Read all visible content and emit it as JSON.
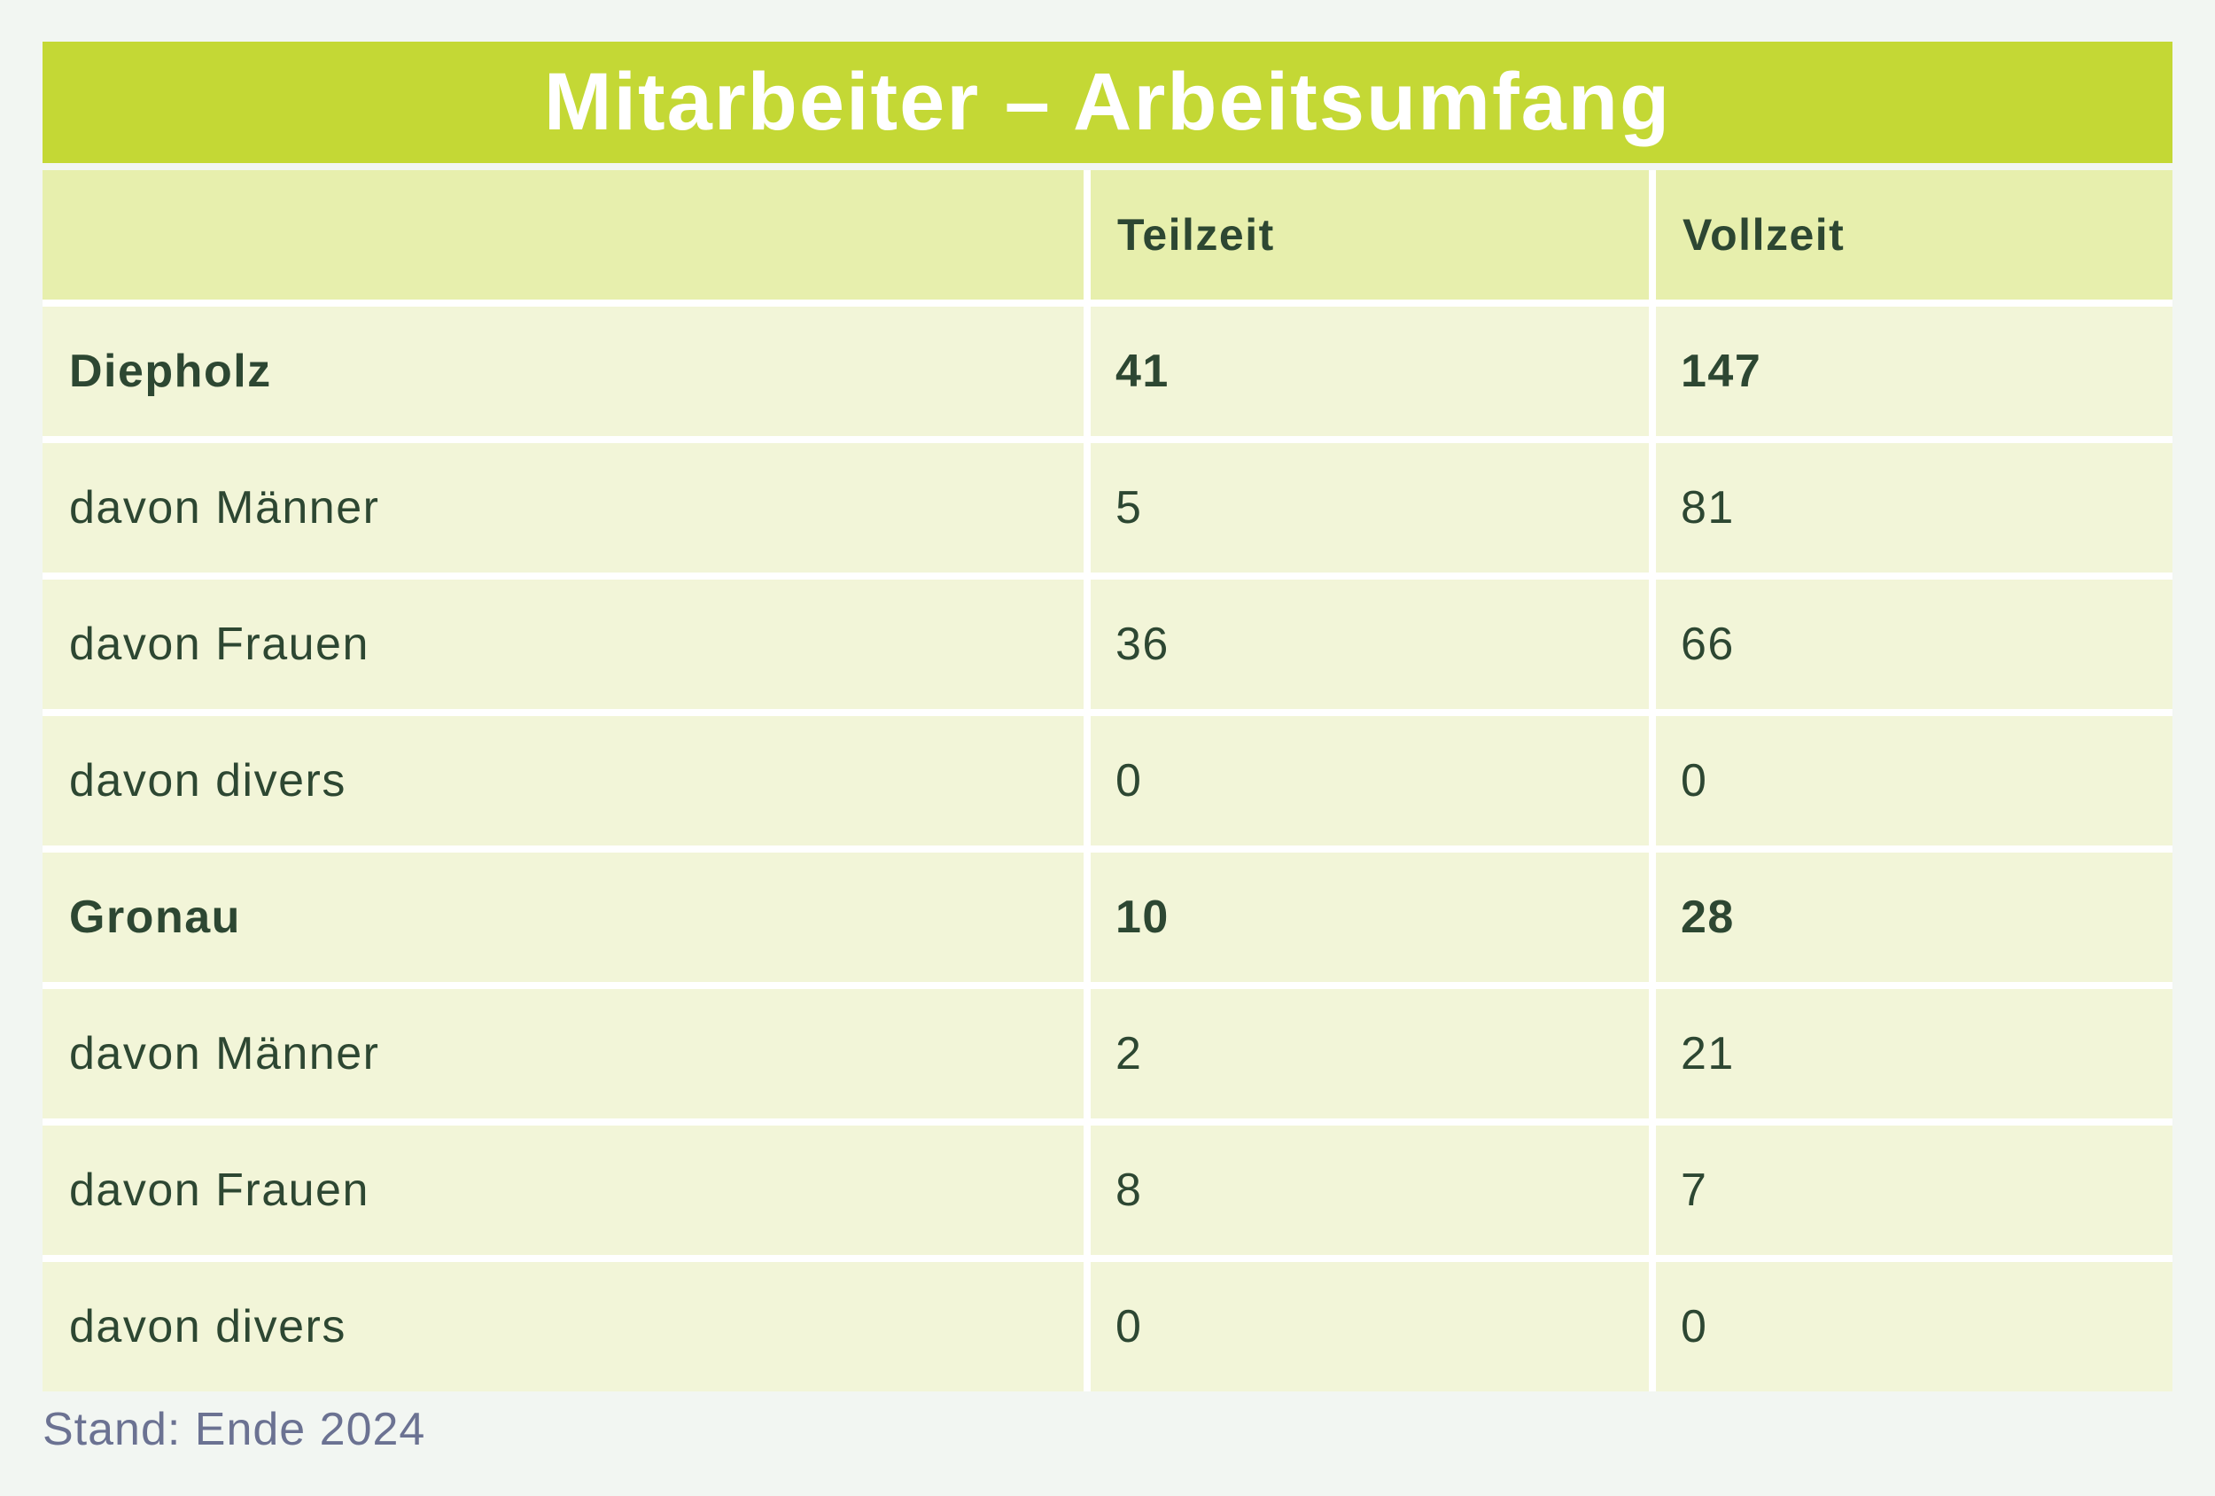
{
  "chart_data": {
    "type": "table",
    "title": "Mitarbeiter – Arbeitsumfang",
    "columns": [
      "Teilzeit",
      "Vollzeit"
    ],
    "rows": [
      {
        "label": "Diepholz",
        "group_header": true,
        "values": [
          "41",
          "147"
        ]
      },
      {
        "label": "davon Männer",
        "group_header": false,
        "values": [
          "5",
          "81"
        ]
      },
      {
        "label": "davon Frauen",
        "group_header": false,
        "values": [
          "36",
          "66"
        ]
      },
      {
        "label": "davon divers",
        "group_header": false,
        "values": [
          "0",
          "0"
        ]
      },
      {
        "label": "Gronau",
        "group_header": true,
        "values": [
          "10",
          "28"
        ]
      },
      {
        "label": "davon Männer",
        "group_header": false,
        "values": [
          "2",
          "21"
        ]
      },
      {
        "label": "davon Frauen",
        "group_header": false,
        "values": [
          "8",
          "7"
        ]
      },
      {
        "label": "davon divers",
        "group_header": false,
        "values": [
          "0",
          "0"
        ]
      }
    ],
    "footnote": "Stand: Ende 2024",
    "legend_position": "none",
    "grid": "white-dividers"
  },
  "colors": {
    "page_background": "#f2f6f2",
    "title_bar": "#c4d835",
    "title_text": "#ffffff",
    "header_row_background": "#e7efad",
    "body_row_background": "#f2f5d8",
    "table_text": "#2d4732",
    "divider": "#ffffff",
    "footer_text": "#6b7292"
  }
}
